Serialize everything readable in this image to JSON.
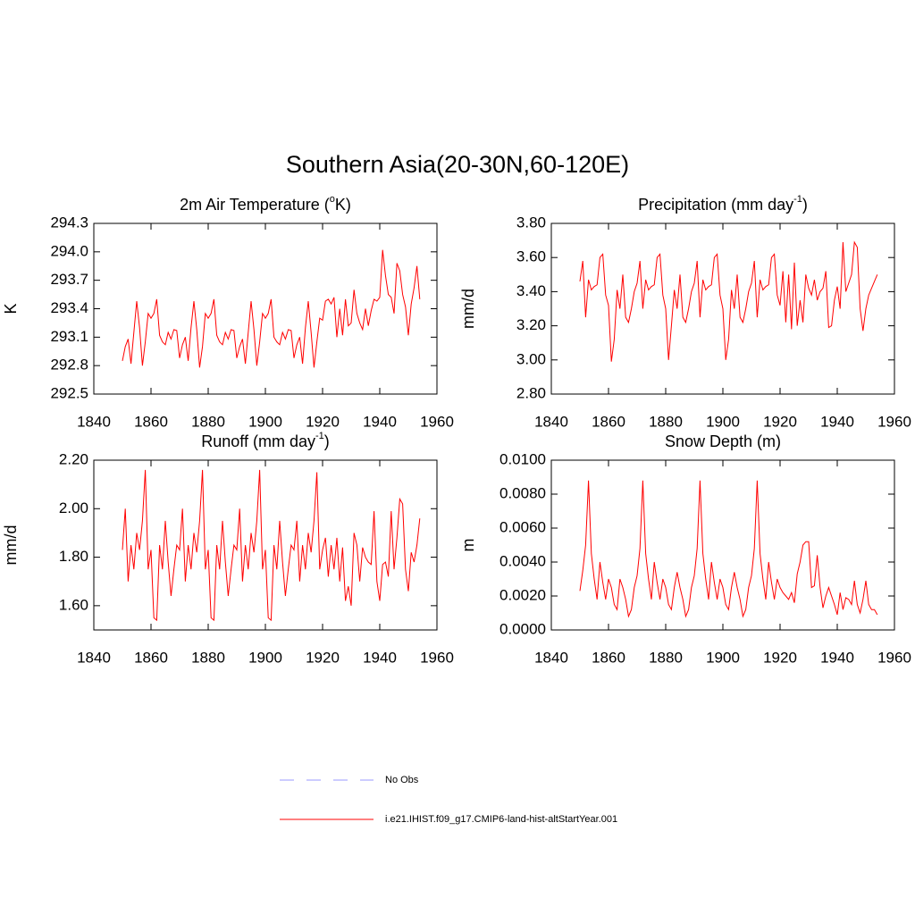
{
  "title": "Southern Asia(20-30N,60-120E)",
  "legend": [
    {
      "name": "No Obs",
      "color": "#9999ff",
      "dashed": true
    },
    {
      "name": "i.e21.IHIST.f09_g17.CMIP6-land-hist-altStartYear.001",
      "color": "#ff0000",
      "dashed": false
    }
  ],
  "chart_data": [
    {
      "type": "line",
      "title": {
        "text": "2m Air Temperature (",
        "sup": "o",
        "after": "K)"
      },
      "ylabel": "K",
      "x": [
        1850,
        1851,
        1852,
        1853,
        1854,
        1855,
        1856,
        1857,
        1858,
        1859,
        1860,
        1861,
        1862,
        1863,
        1864,
        1865,
        1866,
        1867,
        1868,
        1869,
        1870,
        1871,
        1872,
        1873,
        1874,
        1875,
        1876,
        1877,
        1878,
        1879,
        1880,
        1881,
        1882,
        1883,
        1884,
        1885,
        1886,
        1887,
        1888,
        1889,
        1890,
        1891,
        1892,
        1893,
        1894,
        1895,
        1896,
        1897,
        1898,
        1899,
        1900,
        1901,
        1902,
        1903,
        1904,
        1905,
        1906,
        1907,
        1908,
        1909,
        1910,
        1911,
        1912,
        1913,
        1914,
        1915,
        1916,
        1917,
        1918,
        1919,
        1920,
        1921,
        1922,
        1923,
        1924,
        1925,
        1926,
        1927,
        1928,
        1929,
        1930,
        1931,
        1932,
        1933,
        1934,
        1935,
        1936,
        1937,
        1938,
        1939,
        1940,
        1941,
        1942,
        1943,
        1944,
        1945,
        1946,
        1947,
        1948,
        1949,
        1950,
        1951,
        1952,
        1953,
        1954
      ],
      "series": [
        {
          "color": "#ff0000",
          "values": [
            292.85,
            293.0,
            293.08,
            292.82,
            293.15,
            293.48,
            293.2,
            292.8,
            293.05,
            293.35,
            293.3,
            293.35,
            293.5,
            293.12,
            293.05,
            293.02,
            293.15,
            293.08,
            293.18,
            293.17,
            292.88,
            293.02,
            293.1,
            292.85,
            293.2,
            293.48,
            293.18,
            292.78,
            293.0,
            293.35,
            293.3,
            293.35,
            293.5,
            293.12,
            293.05,
            293.02,
            293.15,
            293.08,
            293.18,
            293.17,
            292.88,
            293.0,
            293.08,
            292.82,
            293.15,
            293.48,
            293.18,
            292.8,
            293.05,
            293.35,
            293.3,
            293.35,
            293.5,
            293.1,
            293.05,
            293.02,
            293.15,
            293.08,
            293.18,
            293.17,
            292.88,
            293.02,
            293.1,
            292.82,
            293.2,
            293.48,
            293.15,
            292.78,
            293.05,
            293.3,
            293.28,
            293.48,
            293.5,
            293.45,
            293.52,
            293.1,
            293.4,
            293.12,
            293.5,
            293.22,
            293.25,
            293.6,
            293.35,
            293.25,
            293.18,
            293.4,
            293.22,
            293.38,
            293.5,
            293.48,
            293.52,
            294.02,
            293.75,
            293.55,
            293.52,
            293.35,
            293.88,
            293.8,
            293.55,
            293.42,
            293.12,
            293.45,
            293.62,
            293.85,
            293.5
          ]
        }
      ],
      "xlim": [
        1840,
        1960
      ],
      "xticks": [
        1840,
        1860,
        1880,
        1900,
        1920,
        1940,
        1960
      ],
      "ylim": [
        292.5,
        294.3
      ],
      "yticks": [
        {
          "value": 292.5,
          "label": "292.5"
        },
        {
          "value": 292.8,
          "label": "292.8"
        },
        {
          "value": 293.1,
          "label": "293.1"
        },
        {
          "value": 293.4,
          "label": "293.4"
        },
        {
          "value": 293.7,
          "label": "293.7"
        },
        {
          "value": 294.0,
          "label": "294.0"
        },
        {
          "value": 294.3,
          "label": "294.3"
        }
      ]
    },
    {
      "type": "line",
      "title": {
        "text": "Precipitation (mm day",
        "sup": "-1",
        "after": ")"
      },
      "ylabel": "mm/d",
      "x": [
        1850,
        1851,
        1852,
        1853,
        1854,
        1855,
        1856,
        1857,
        1858,
        1859,
        1860,
        1861,
        1862,
        1863,
        1864,
        1865,
        1866,
        1867,
        1868,
        1869,
        1870,
        1871,
        1872,
        1873,
        1874,
        1875,
        1876,
        1877,
        1878,
        1879,
        1880,
        1881,
        1882,
        1883,
        1884,
        1885,
        1886,
        1887,
        1888,
        1889,
        1890,
        1891,
        1892,
        1893,
        1894,
        1895,
        1896,
        1897,
        1898,
        1899,
        1900,
        1901,
        1902,
        1903,
        1904,
        1905,
        1906,
        1907,
        1908,
        1909,
        1910,
        1911,
        1912,
        1913,
        1914,
        1915,
        1916,
        1917,
        1918,
        1919,
        1920,
        1921,
        1922,
        1923,
        1924,
        1925,
        1926,
        1927,
        1928,
        1929,
        1930,
        1931,
        1932,
        1933,
        1934,
        1935,
        1936,
        1937,
        1938,
        1939,
        1940,
        1941,
        1942,
        1943,
        1944,
        1945,
        1946,
        1947,
        1948,
        1949,
        1950,
        1951,
        1952,
        1953,
        1954
      ],
      "series": [
        {
          "color": "#ff0000",
          "values": [
            3.46,
            3.58,
            3.25,
            3.47,
            3.41,
            3.43,
            3.44,
            3.6,
            3.62,
            3.38,
            3.32,
            2.99,
            3.12,
            3.41,
            3.3,
            3.5,
            3.25,
            3.22,
            3.3,
            3.4,
            3.45,
            3.58,
            3.3,
            3.47,
            3.41,
            3.43,
            3.44,
            3.6,
            3.62,
            3.38,
            3.3,
            3.0,
            3.2,
            3.41,
            3.3,
            3.5,
            3.25,
            3.22,
            3.3,
            3.4,
            3.45,
            3.58,
            3.25,
            3.47,
            3.41,
            3.43,
            3.44,
            3.6,
            3.62,
            3.38,
            3.3,
            3.0,
            3.12,
            3.41,
            3.3,
            3.5,
            3.25,
            3.22,
            3.3,
            3.4,
            3.45,
            3.58,
            3.25,
            3.47,
            3.41,
            3.43,
            3.44,
            3.6,
            3.62,
            3.38,
            3.32,
            3.52,
            3.22,
            3.5,
            3.18,
            3.57,
            3.2,
            3.35,
            3.22,
            3.5,
            3.42,
            3.38,
            3.47,
            3.35,
            3.4,
            3.42,
            3.52,
            3.19,
            3.2,
            3.35,
            3.43,
            3.3,
            3.69,
            3.4,
            3.45,
            3.5,
            3.69,
            3.66,
            3.3,
            3.17,
            3.3,
            3.38,
            3.42,
            3.46,
            3.5
          ]
        }
      ],
      "xlim": [
        1840,
        1960
      ],
      "xticks": [
        1840,
        1860,
        1880,
        1900,
        1920,
        1940,
        1960
      ],
      "ylim": [
        2.8,
        3.8
      ],
      "yticks": [
        {
          "value": 2.8,
          "label": "2.80"
        },
        {
          "value": 3.0,
          "label": "3.00"
        },
        {
          "value": 3.2,
          "label": "3.20"
        },
        {
          "value": 3.4,
          "label": "3.40"
        },
        {
          "value": 3.6,
          "label": "3.60"
        },
        {
          "value": 3.8,
          "label": "3.80"
        }
      ]
    },
    {
      "type": "line",
      "title": {
        "text": "Runoff (mm day",
        "sup": "-1",
        "after": ")"
      },
      "ylabel": "mm/d",
      "x": [
        1850,
        1851,
        1852,
        1853,
        1854,
        1855,
        1856,
        1857,
        1858,
        1859,
        1860,
        1861,
        1862,
        1863,
        1864,
        1865,
        1866,
        1867,
        1868,
        1869,
        1870,
        1871,
        1872,
        1873,
        1874,
        1875,
        1876,
        1877,
        1878,
        1879,
        1880,
        1881,
        1882,
        1883,
        1884,
        1885,
        1886,
        1887,
        1888,
        1889,
        1890,
        1891,
        1892,
        1893,
        1894,
        1895,
        1896,
        1897,
        1898,
        1899,
        1900,
        1901,
        1902,
        1903,
        1904,
        1905,
        1906,
        1907,
        1908,
        1909,
        1910,
        1911,
        1912,
        1913,
        1914,
        1915,
        1916,
        1917,
        1918,
        1919,
        1920,
        1921,
        1922,
        1923,
        1924,
        1925,
        1926,
        1927,
        1928,
        1929,
        1930,
        1931,
        1932,
        1933,
        1934,
        1935,
        1936,
        1937,
        1938,
        1939,
        1940,
        1941,
        1942,
        1943,
        1944,
        1945,
        1946,
        1947,
        1948,
        1949,
        1950,
        1951,
        1952,
        1953,
        1954
      ],
      "series": [
        {
          "color": "#ff0000",
          "values": [
            1.83,
            2.0,
            1.7,
            1.85,
            1.75,
            1.9,
            1.83,
            1.95,
            2.16,
            1.75,
            1.83,
            1.55,
            1.54,
            1.85,
            1.75,
            1.95,
            1.78,
            1.64,
            1.75,
            1.85,
            1.83,
            2.0,
            1.7,
            1.85,
            1.75,
            1.9,
            1.82,
            1.95,
            2.16,
            1.75,
            1.83,
            1.55,
            1.54,
            1.85,
            1.75,
            1.95,
            1.78,
            1.64,
            1.75,
            1.85,
            1.83,
            2.0,
            1.7,
            1.85,
            1.75,
            1.9,
            1.82,
            1.95,
            2.16,
            1.75,
            1.83,
            1.55,
            1.54,
            1.85,
            1.75,
            1.95,
            1.78,
            1.64,
            1.75,
            1.85,
            1.83,
            1.95,
            1.7,
            1.85,
            1.75,
            1.9,
            1.82,
            1.95,
            2.15,
            1.75,
            1.83,
            1.88,
            1.72,
            1.85,
            1.75,
            1.88,
            1.7,
            1.84,
            1.62,
            1.68,
            1.6,
            1.9,
            1.85,
            1.7,
            1.84,
            1.8,
            1.78,
            1.77,
            1.99,
            1.7,
            1.62,
            1.77,
            1.78,
            1.72,
            1.99,
            1.75,
            1.88,
            2.04,
            2.02,
            1.75,
            1.66,
            1.82,
            1.78,
            1.85,
            1.96
          ]
        }
      ],
      "xlim": [
        1840,
        1960
      ],
      "xticks": [
        1840,
        1860,
        1880,
        1900,
        1920,
        1940,
        1960
      ],
      "ylim": [
        1.5,
        2.2
      ],
      "yticks": [
        {
          "value": 1.6,
          "label": "1.60"
        },
        {
          "value": 1.8,
          "label": "1.80"
        },
        {
          "value": 2.0,
          "label": "2.00"
        },
        {
          "value": 2.2,
          "label": "2.20"
        }
      ]
    },
    {
      "type": "line",
      "title": {
        "text": "Snow Depth (m)"
      },
      "ylabel": "m",
      "x": [
        1850,
        1851,
        1852,
        1853,
        1854,
        1855,
        1856,
        1857,
        1858,
        1859,
        1860,
        1861,
        1862,
        1863,
        1864,
        1865,
        1866,
        1867,
        1868,
        1869,
        1870,
        1871,
        1872,
        1873,
        1874,
        1875,
        1876,
        1877,
        1878,
        1879,
        1880,
        1881,
        1882,
        1883,
        1884,
        1885,
        1886,
        1887,
        1888,
        1889,
        1890,
        1891,
        1892,
        1893,
        1894,
        1895,
        1896,
        1897,
        1898,
        1899,
        1900,
        1901,
        1902,
        1903,
        1904,
        1905,
        1906,
        1907,
        1908,
        1909,
        1910,
        1911,
        1912,
        1913,
        1914,
        1915,
        1916,
        1917,
        1918,
        1919,
        1920,
        1921,
        1922,
        1923,
        1924,
        1925,
        1926,
        1927,
        1928,
        1929,
        1930,
        1931,
        1932,
        1933,
        1934,
        1935,
        1936,
        1937,
        1938,
        1939,
        1940,
        1941,
        1942,
        1943,
        1944,
        1945,
        1946,
        1947,
        1948,
        1949,
        1950,
        1951,
        1952,
        1953,
        1954
      ],
      "series": [
        {
          "color": "#ff0000",
          "values": [
            0.0023,
            0.0035,
            0.005,
            0.0088,
            0.0045,
            0.003,
            0.0018,
            0.004,
            0.0028,
            0.0018,
            0.003,
            0.0025,
            0.0015,
            0.0012,
            0.003,
            0.0025,
            0.0018,
            0.0008,
            0.0012,
            0.0025,
            0.0032,
            0.0048,
            0.0088,
            0.0045,
            0.003,
            0.0018,
            0.004,
            0.0028,
            0.0018,
            0.003,
            0.0025,
            0.0015,
            0.0012,
            0.0025,
            0.0034,
            0.0025,
            0.0018,
            0.0008,
            0.0012,
            0.0025,
            0.0032,
            0.0048,
            0.0088,
            0.0045,
            0.003,
            0.0018,
            0.004,
            0.0028,
            0.0018,
            0.003,
            0.0025,
            0.0015,
            0.0012,
            0.0025,
            0.0034,
            0.0025,
            0.0018,
            0.0008,
            0.0012,
            0.0025,
            0.0032,
            0.0048,
            0.0088,
            0.0045,
            0.003,
            0.0018,
            0.004,
            0.0028,
            0.0018,
            0.003,
            0.0025,
            0.0022,
            0.002,
            0.0018,
            0.0022,
            0.0016,
            0.0033,
            0.004,
            0.005,
            0.0052,
            0.0052,
            0.0025,
            0.0026,
            0.0044,
            0.0025,
            0.0013,
            0.002,
            0.0025,
            0.002,
            0.0015,
            0.0009,
            0.0022,
            0.0012,
            0.0019,
            0.0018,
            0.0015,
            0.0029,
            0.0015,
            0.001,
            0.0018,
            0.0029,
            0.0015,
            0.0012,
            0.0012,
            0.0009
          ]
        }
      ],
      "xlim": [
        1840,
        1960
      ],
      "xticks": [
        1840,
        1860,
        1880,
        1900,
        1920,
        1940,
        1960
      ],
      "ylim": [
        0,
        0.01
      ],
      "yticks": [
        {
          "value": 0,
          "label": "0.0000"
        },
        {
          "value": 0.002,
          "label": "0.0020"
        },
        {
          "value": 0.004,
          "label": "0.0040"
        },
        {
          "value": 0.006,
          "label": "0.0060"
        },
        {
          "value": 0.008,
          "label": "0.0080"
        },
        {
          "value": 0.01,
          "label": "0.0100"
        }
      ]
    }
  ]
}
